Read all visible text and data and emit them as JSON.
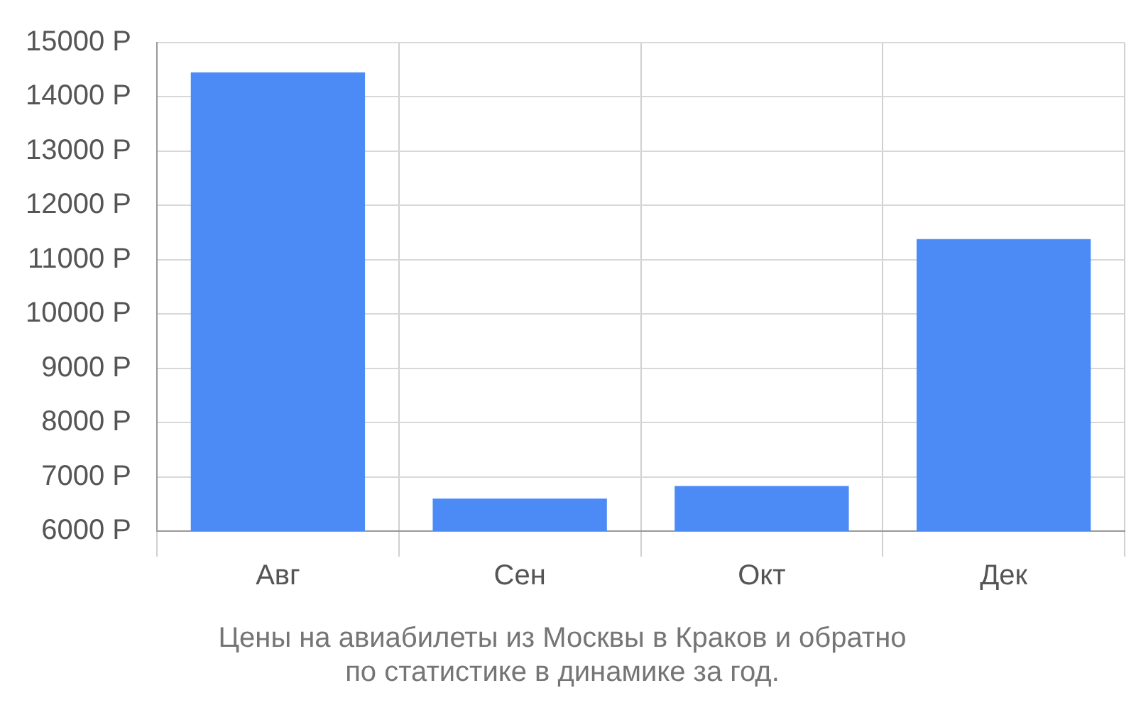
{
  "chart_data": {
    "type": "bar",
    "title": "Цены на авиабилеты из Москвы в Краков и обратно\nпо статистике в динамике за год.",
    "categories": [
      "Авг",
      "Сен",
      "Окт",
      "Дек"
    ],
    "values": [
      14450,
      6600,
      6830,
      11380
    ],
    "color": "#4c8bf5",
    "ylim": [
      6000,
      15000
    ],
    "yticks": [
      {
        "value": 6000,
        "label": "6000 Р"
      },
      {
        "value": 7000,
        "label": "7000 Р"
      },
      {
        "value": 8000,
        "label": "8000 Р"
      },
      {
        "value": 9000,
        "label": "9000 Р"
      },
      {
        "value": 10000,
        "label": "10000 Р"
      },
      {
        "value": 11000,
        "label": "11000 Р"
      },
      {
        "value": 12000,
        "label": "12000 Р"
      },
      {
        "value": 13000,
        "label": "13000 Р"
      },
      {
        "value": 14000,
        "label": "14000 Р"
      },
      {
        "value": 15000,
        "label": "15000 Р"
      }
    ],
    "grid": true
  }
}
